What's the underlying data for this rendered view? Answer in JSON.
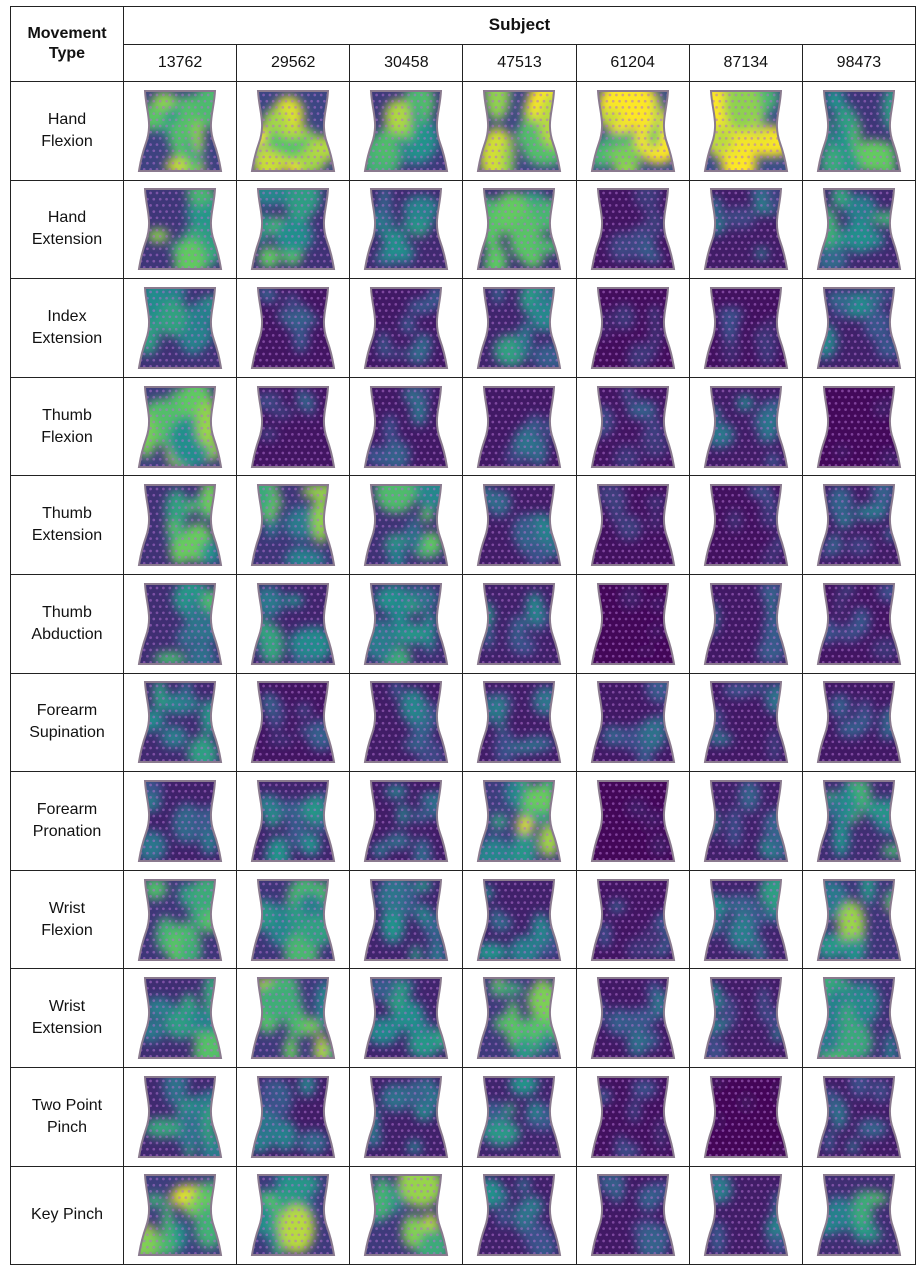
{
  "header": {
    "corner_line1": "Movement",
    "corner_line2": "Type",
    "group_title": "Subject"
  },
  "subjects": [
    "13762",
    "29562",
    "30458",
    "47513",
    "61204",
    "87134",
    "98473"
  ],
  "movements": [
    {
      "line1": "Hand",
      "line2": "Flexion"
    },
    {
      "line1": "Hand",
      "line2": "Extension"
    },
    {
      "line1": "Index",
      "line2": "Extension"
    },
    {
      "line1": "Thumb",
      "line2": "Flexion"
    },
    {
      "line1": "Thumb",
      "line2": "Extension"
    },
    {
      "line1": "Thumb",
      "line2": "Abduction"
    },
    {
      "line1": "Forearm",
      "line2": "Supination"
    },
    {
      "line1": "Forearm",
      "line2": "Pronation"
    },
    {
      "line1": "Wrist",
      "line2": "Flexion"
    },
    {
      "line1": "Wrist",
      "line2": "Extension"
    },
    {
      "line1": "Two Point",
      "line2": "Pinch"
    },
    {
      "line1": "Key Pinch",
      "line2": ""
    }
  ],
  "colormap": {
    "name": "viridis",
    "stops": [
      "#440154",
      "#3b528b",
      "#21918c",
      "#5ec962",
      "#fde725"
    ],
    "electrode_dot": "#b06fcf",
    "outline": "#8a7a8e"
  },
  "activation_levels": [
    [
      0.8,
      0.85,
      0.7,
      0.85,
      0.95,
      0.95,
      0.65
    ],
    [
      0.65,
      0.6,
      0.5,
      0.6,
      0.25,
      0.35,
      0.5
    ],
    [
      0.6,
      0.25,
      0.3,
      0.45,
      0.15,
      0.2,
      0.4
    ],
    [
      0.75,
      0.25,
      0.3,
      0.3,
      0.25,
      0.35,
      0.1
    ],
    [
      0.6,
      0.65,
      0.6,
      0.35,
      0.2,
      0.2,
      0.35
    ],
    [
      0.55,
      0.45,
      0.55,
      0.4,
      0.08,
      0.3,
      0.25
    ],
    [
      0.5,
      0.25,
      0.35,
      0.35,
      0.3,
      0.3,
      0.3
    ],
    [
      0.4,
      0.45,
      0.35,
      0.75,
      0.08,
      0.4,
      0.55
    ],
    [
      0.65,
      0.65,
      0.45,
      0.4,
      0.25,
      0.45,
      0.65
    ],
    [
      0.55,
      0.7,
      0.45,
      0.7,
      0.3,
      0.35,
      0.6
    ],
    [
      0.5,
      0.35,
      0.4,
      0.45,
      0.2,
      0.05,
      0.35
    ],
    [
      0.75,
      0.7,
      0.7,
      0.4,
      0.3,
      0.35,
      0.55
    ]
  ]
}
